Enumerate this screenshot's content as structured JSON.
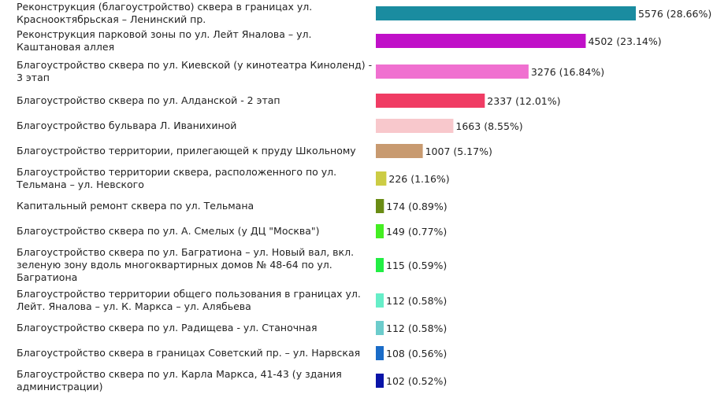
{
  "chart_data": {
    "type": "bar",
    "orientation": "horizontal",
    "title": "",
    "xlabel": "",
    "ylabel": "",
    "grid": false,
    "legend": "none",
    "xlim": [
      0,
      5576
    ],
    "categories": [
      [
        "Реконструкция (благоустройство) сквера в границах ул.",
        "Краснооктябрьская – Ленинский пр."
      ],
      [
        "Реконструкция парковой зоны по ул. Лейт Яналова – ул.",
        "Каштановая аллея"
      ],
      [
        "Благоустройство сквера по ул. Киевской (у кинотеатра Киноленд) -",
        "3 этап"
      ],
      [
        "Благоустройство сквера по ул. Алданской - 2 этап"
      ],
      [
        "Благоустройство бульвара Л. Иванихиной"
      ],
      [
        "Благоустройство территории, прилегающей к пруду Школьному"
      ],
      [
        "Благоустройство территории сквера, расположенного по ул.",
        "Тельмана – ул. Невского"
      ],
      [
        "Капитальный ремонт сквера по ул. Тельмана"
      ],
      [
        "Благоустройство сквера по ул. А. Смелых (у ДЦ \"Москва\")"
      ],
      [
        "Благоустройство сквера по ул. Багратиона – ул. Новый вал, вкл.",
        "зеленую зону вдоль многоквартирных домов № 48-64 по ул.",
        "Багратиона"
      ],
      [
        "Благоустройство территории общего пользования в границах ул.",
        "Лейт. Яналова – ул. К. Маркса – ул. Алябьева"
      ],
      [
        "Благоустройство сквера по ул. Радищева - ул. Станочная"
      ],
      [
        "Благоустройство сквера в границах Советский пр. – ул. Нарвская"
      ],
      [
        "Благоустройство сквера по ул. Карла Маркса, 41-43 (у здания",
        "администрации)"
      ]
    ],
    "values": [
      5576,
      4502,
      3276,
      2337,
      1663,
      1007,
      226,
      174,
      149,
      115,
      112,
      112,
      108,
      102
    ],
    "value_labels": [
      "5576 (28.66%)",
      "4502 (23.14%)",
      "3276 (16.84%)",
      "2337 (12.01%)",
      "1663 (8.55%)",
      "1007 (5.17%)",
      "226 (1.16%)",
      "174 (0.89%)",
      "149 (0.77%)",
      "115 (0.59%)",
      "112 (0.58%)",
      "112 (0.58%)",
      "108 (0.56%)",
      "102 (0.52%)"
    ],
    "colors": [
      "#1a8ca0",
      "#c010c8",
      "#f070d0",
      "#f03c64",
      "#f8c8cc",
      "#c89a70",
      "#cccc44",
      "#6a8c14",
      "#44ee22",
      "#22ee44",
      "#66eec8",
      "#6ccccc",
      "#1a6cc8",
      "#0a14a8"
    ]
  }
}
